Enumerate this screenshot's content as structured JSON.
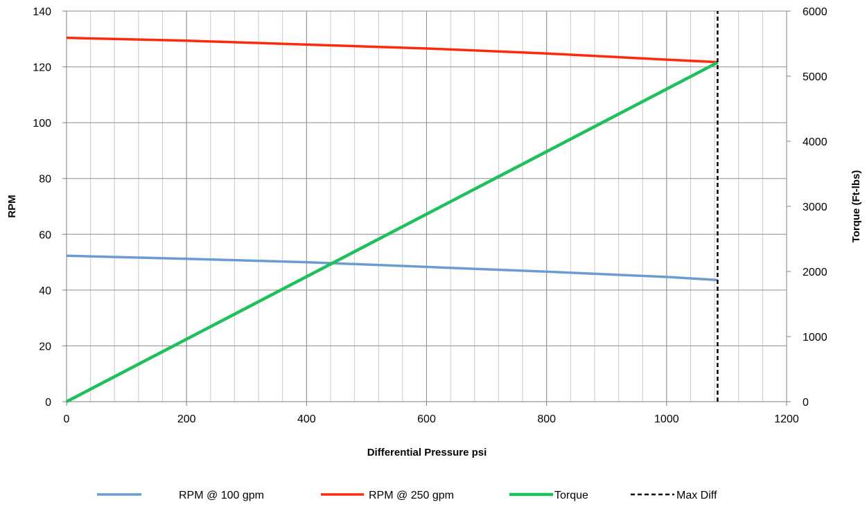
{
  "chart_data": {
    "type": "line",
    "title": "",
    "xlabel": "Differential Pressure psi",
    "ylabel": "RPM",
    "y2label": "Torque (Ft-lbs)",
    "xlim": [
      0,
      1200
    ],
    "ylim": [
      0,
      140
    ],
    "y2lim": [
      0,
      6000
    ],
    "xticks": [
      0,
      200,
      400,
      600,
      800,
      1000,
      1200
    ],
    "xtick_labels": [
      "0",
      "200",
      "400",
      "600",
      "800",
      "1000",
      "1200"
    ],
    "yticks": [
      0,
      20,
      40,
      60,
      80,
      100,
      120,
      140
    ],
    "ytick_labels": [
      "0",
      "20",
      "40",
      "60",
      "80",
      "100",
      "120",
      "140"
    ],
    "y2ticks": [
      0,
      1000,
      2000,
      3000,
      4000,
      5000,
      6000
    ],
    "y2tick_labels": [
      "0",
      "1000",
      "2000",
      "3000",
      "4000",
      "5000",
      "6000"
    ],
    "grid": true,
    "minor_x_grid_step": 40,
    "legend_position": "bottom",
    "series": [
      {
        "name": "RPM @ 100 gpm",
        "axis": "left",
        "color": "#6a9bd1",
        "style": "solid",
        "x": [
          0,
          200,
          400,
          600,
          800,
          1000,
          1085
        ],
        "values": [
          52.3,
          51.2,
          50.0,
          48.3,
          46.6,
          44.7,
          43.6
        ]
      },
      {
        "name": "RPM @ 250 gpm",
        "axis": "left",
        "color": "#ff2a0a",
        "style": "solid",
        "x": [
          0,
          200,
          400,
          600,
          800,
          1000,
          1085
        ],
        "values": [
          130.4,
          129.4,
          128.0,
          126.6,
          124.8,
          122.6,
          121.7
        ]
      },
      {
        "name": "Torque",
        "axis": "right",
        "color": "#1ec05c",
        "style": "solid",
        "x": [
          0,
          1085
        ],
        "values": [
          0,
          5210
        ]
      },
      {
        "name": "Max Diff",
        "axis": "left",
        "color": "#000000",
        "style": "dashed",
        "x": [
          1085,
          1085
        ],
        "values": [
          0,
          140
        ]
      }
    ]
  }
}
